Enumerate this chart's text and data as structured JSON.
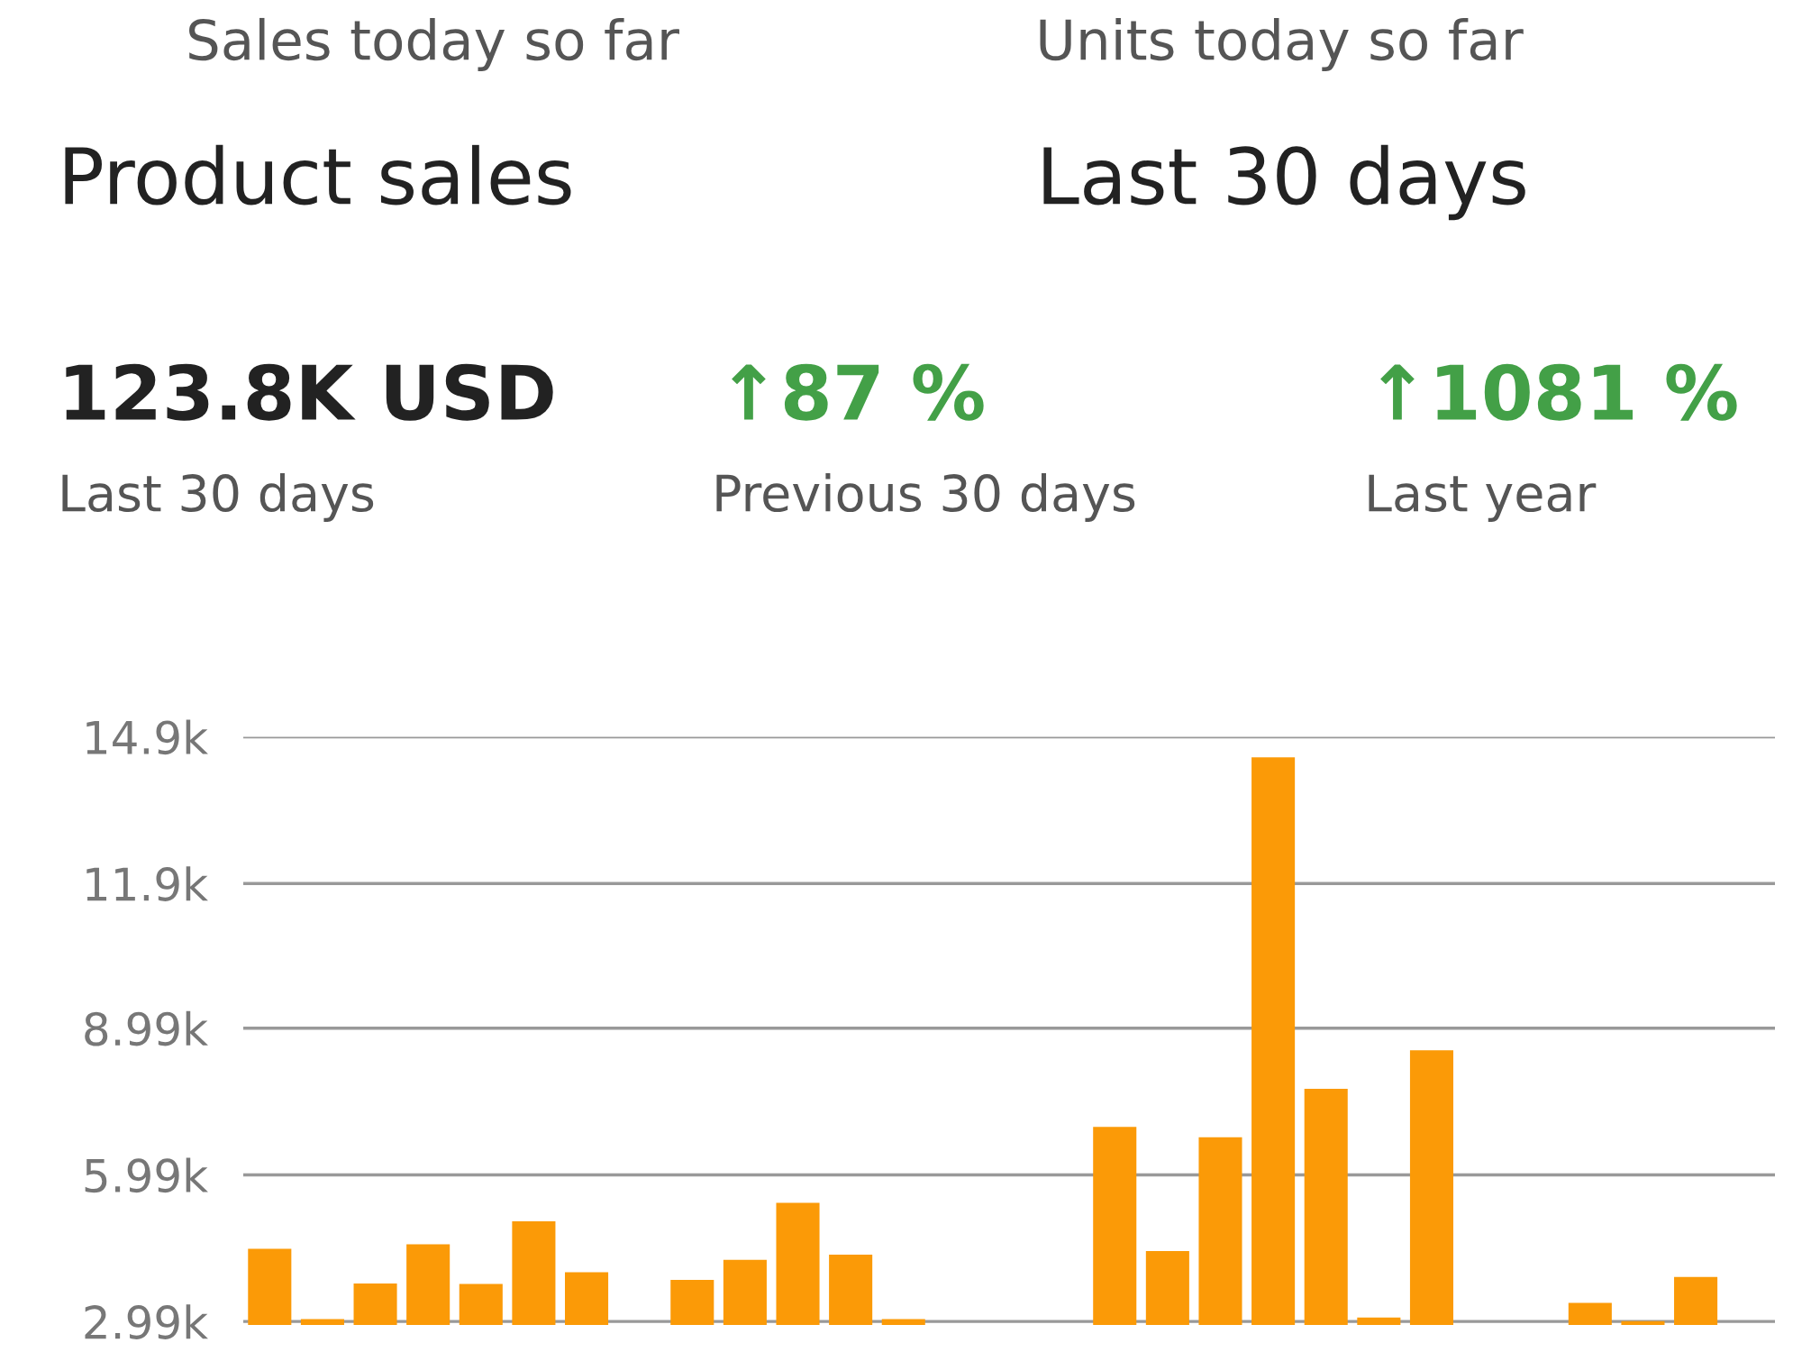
{
  "chart_data": {
    "type": "bar",
    "title": "Product sales",
    "subtitle": "Last 30 days",
    "annotations": [
      "Sales today so far",
      "Units today so far",
      "123.8K USD",
      "Last 30 days",
      "↑87 %",
      "Previous 30 days",
      "↑1081 %",
      "Last year"
    ],
    "categories": [
      null,
      null,
      null,
      null,
      null,
      null,
      null,
      null,
      null,
      null,
      null,
      null,
      null,
      null,
      null,
      null,
      null,
      null,
      null,
      null,
      null,
      null,
      null,
      null,
      null,
      null,
      null,
      null,
      null
    ],
    "values": [
      4480,
      3040,
      3770,
      4570,
      3760,
      5040,
      4000,
      null,
      3840,
      4250,
      5420,
      4360,
      3040,
      null,
      null,
      null,
      6970,
      4430,
      6760,
      14530,
      7750,
      3070,
      8540,
      null,
      null,
      3370,
      3000,
      3900,
      null
    ],
    "color": "#fb9a07",
    "ylim": [
      2920,
      14950
    ],
    "yticks": [
      {
        "value": 2990,
        "label": "2.99k"
      },
      {
        "value": 5990,
        "label": "5.99k"
      },
      {
        "value": 8990,
        "label": "8.99k"
      },
      {
        "value": 11950,
        "label": "11.9k"
      },
      {
        "value": 14950,
        "label": "14.9k"
      }
    ],
    "grid": "y",
    "tick_labels": "y"
  }
}
